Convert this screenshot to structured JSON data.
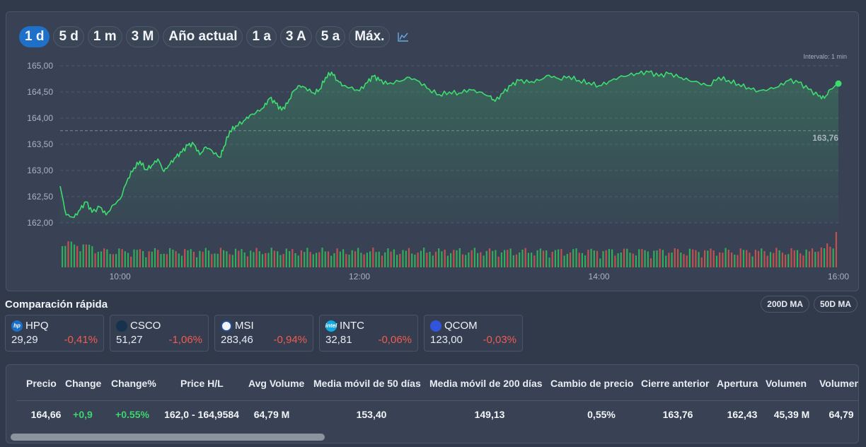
{
  "ranges": {
    "items": [
      {
        "label": "1 d",
        "active": true
      },
      {
        "label": "5 d"
      },
      {
        "label": "1 m"
      },
      {
        "label": "3 M"
      },
      {
        "label": "Año actual"
      },
      {
        "label": "1 a"
      },
      {
        "label": "3 A"
      },
      {
        "label": "5 a"
      },
      {
        "label": "Máx."
      }
    ],
    "chart_type_icon": "area-chart-icon"
  },
  "interval_label": "Intervalo: 1 min",
  "chart_data": {
    "type": "area",
    "x_labels": [
      "10:00",
      "12:00",
      "14:00",
      "16:00"
    ],
    "y_labels": [
      "165,00",
      "164,50",
      "164,00",
      "163,50",
      "163,00",
      "162,50",
      "162,00"
    ],
    "ylim": [
      162.0,
      165.0
    ],
    "xlim": [
      "09:30",
      "16:00"
    ],
    "previous_close": 163.76,
    "previous_close_label": "163,76",
    "last_price": 164.66,
    "line_color": "#3ddc6f",
    "up_volume_color": "#2fbf5c",
    "down_volume_color": "#d9534f",
    "series": [
      {
        "values": [
          [
            "09:30",
            162.7
          ],
          [
            "09:33",
            162.15
          ],
          [
            "09:37",
            162.1
          ],
          [
            "09:40",
            162.25
          ],
          [
            "09:43",
            162.4
          ],
          [
            "09:46",
            162.2
          ],
          [
            "09:50",
            162.3
          ],
          [
            "09:53",
            162.15
          ],
          [
            "09:57",
            162.35
          ],
          [
            "10:00",
            162.45
          ],
          [
            "10:04",
            162.85
          ],
          [
            "10:07",
            163.05
          ],
          [
            "10:10",
            163.18
          ],
          [
            "10:13",
            163.02
          ],
          [
            "10:16",
            163.1
          ],
          [
            "10:19",
            163.22
          ],
          [
            "10:22",
            162.98
          ],
          [
            "10:25",
            163.12
          ],
          [
            "10:28",
            163.25
          ],
          [
            "10:31",
            163.35
          ],
          [
            "10:34",
            163.48
          ],
          [
            "10:37",
            163.5
          ],
          [
            "10:40",
            163.3
          ],
          [
            "10:43",
            163.45
          ],
          [
            "10:46",
            163.38
          ],
          [
            "10:50",
            163.25
          ],
          [
            "10:52",
            163.45
          ],
          [
            "10:55",
            163.75
          ],
          [
            "10:58",
            163.85
          ],
          [
            "11:02",
            163.95
          ],
          [
            "11:05",
            164.05
          ],
          [
            "11:08",
            164.1
          ],
          [
            "11:12",
            164.2
          ],
          [
            "11:15",
            164.38
          ],
          [
            "11:18",
            164.28
          ],
          [
            "11:21",
            164.15
          ],
          [
            "11:24",
            164.28
          ],
          [
            "11:27",
            164.52
          ],
          [
            "11:30",
            164.62
          ],
          [
            "11:33",
            164.58
          ],
          [
            "11:37",
            164.48
          ],
          [
            "11:40",
            164.55
          ],
          [
            "11:43",
            164.78
          ],
          [
            "11:46",
            164.88
          ],
          [
            "11:49",
            164.72
          ],
          [
            "11:52",
            164.62
          ],
          [
            "11:55",
            164.58
          ],
          [
            "12:00",
            164.52
          ],
          [
            "12:04",
            164.68
          ],
          [
            "12:07",
            164.8
          ],
          [
            "12:10",
            164.72
          ],
          [
            "12:14",
            164.65
          ],
          [
            "12:20",
            164.7
          ],
          [
            "12:25",
            164.78
          ],
          [
            "12:30",
            164.7
          ],
          [
            "12:35",
            164.55
          ],
          [
            "12:40",
            164.45
          ],
          [
            "12:45",
            164.5
          ],
          [
            "12:50",
            164.48
          ],
          [
            "12:55",
            164.55
          ],
          [
            "13:00",
            164.5
          ],
          [
            "13:05",
            164.42
          ],
          [
            "13:08",
            164.32
          ],
          [
            "13:12",
            164.48
          ],
          [
            "13:16",
            164.62
          ],
          [
            "13:20",
            164.72
          ],
          [
            "13:25",
            164.68
          ],
          [
            "13:30",
            164.72
          ],
          [
            "13:35",
            164.82
          ],
          [
            "13:40",
            164.75
          ],
          [
            "13:45",
            164.8
          ],
          [
            "13:50",
            164.72
          ],
          [
            "13:55",
            164.68
          ],
          [
            "14:00",
            164.62
          ],
          [
            "14:05",
            164.7
          ],
          [
            "14:10",
            164.78
          ],
          [
            "14:15",
            164.82
          ],
          [
            "14:20",
            164.85
          ],
          [
            "14:25",
            164.88
          ],
          [
            "14:30",
            164.8
          ],
          [
            "14:35",
            164.85
          ],
          [
            "14:40",
            164.78
          ],
          [
            "14:45",
            164.72
          ],
          [
            "14:50",
            164.68
          ],
          [
            "14:55",
            164.62
          ],
          [
            "15:00",
            164.78
          ],
          [
            "15:05",
            164.72
          ],
          [
            "15:10",
            164.65
          ],
          [
            "15:15",
            164.58
          ],
          [
            "15:20",
            164.52
          ],
          [
            "15:25",
            164.55
          ],
          [
            "15:30",
            164.6
          ],
          [
            "15:35",
            164.72
          ],
          [
            "15:40",
            164.68
          ],
          [
            "15:45",
            164.55
          ],
          [
            "15:50",
            164.42
          ],
          [
            "15:53",
            164.38
          ],
          [
            "15:56",
            164.55
          ],
          [
            "16:00",
            164.66
          ]
        ]
      }
    ]
  },
  "quick_compare": {
    "title": "Comparación rápida",
    "ma_buttons": [
      "200D MA",
      "50D MA"
    ],
    "cards": [
      {
        "symbol": "HPQ",
        "price": "29,29",
        "change": "-0,41%",
        "logo": "hp-logo-icon",
        "logo_text": "hp",
        "logo_color": "#1a6fc9"
      },
      {
        "symbol": "CSCO",
        "price": "51,27",
        "change": "-1,06%",
        "logo": "cisco-logo-icon",
        "logo_text": "",
        "logo_color": "#17324d"
      },
      {
        "symbol": "MSI",
        "price": "283,46",
        "change": "-0,94%",
        "logo": "motorola-logo-icon",
        "logo_text": "",
        "logo_color": "#f2f4f8"
      },
      {
        "symbol": "INTC",
        "price": "32,81",
        "change": "-0,06%",
        "logo": "intel-logo-icon",
        "logo_text": "intel",
        "logo_color": "#10a9e3"
      },
      {
        "symbol": "QCOM",
        "price": "123,00",
        "change": "-0,03%",
        "logo": "qualcomm-logo-icon",
        "logo_text": "",
        "logo_color": "#3253dc"
      }
    ]
  },
  "stats_table": {
    "headers": [
      "Precio",
      "Change",
      "Change%",
      "Price H/L",
      "Avg Volume",
      "Media móvil de 50 días",
      "Media móvil de 200 días",
      "Cambio de precio",
      "Cierre anterior",
      "Apertura",
      "Volumen",
      "Volumen"
    ],
    "values": [
      "164,66",
      "+0,9",
      "+0.55%",
      "162,0 - 164,9584",
      "64,79 M",
      "153,40",
      "149,13",
      "0,55%",
      "163,76",
      "162,43",
      "45,39 M",
      "64,79"
    ]
  }
}
